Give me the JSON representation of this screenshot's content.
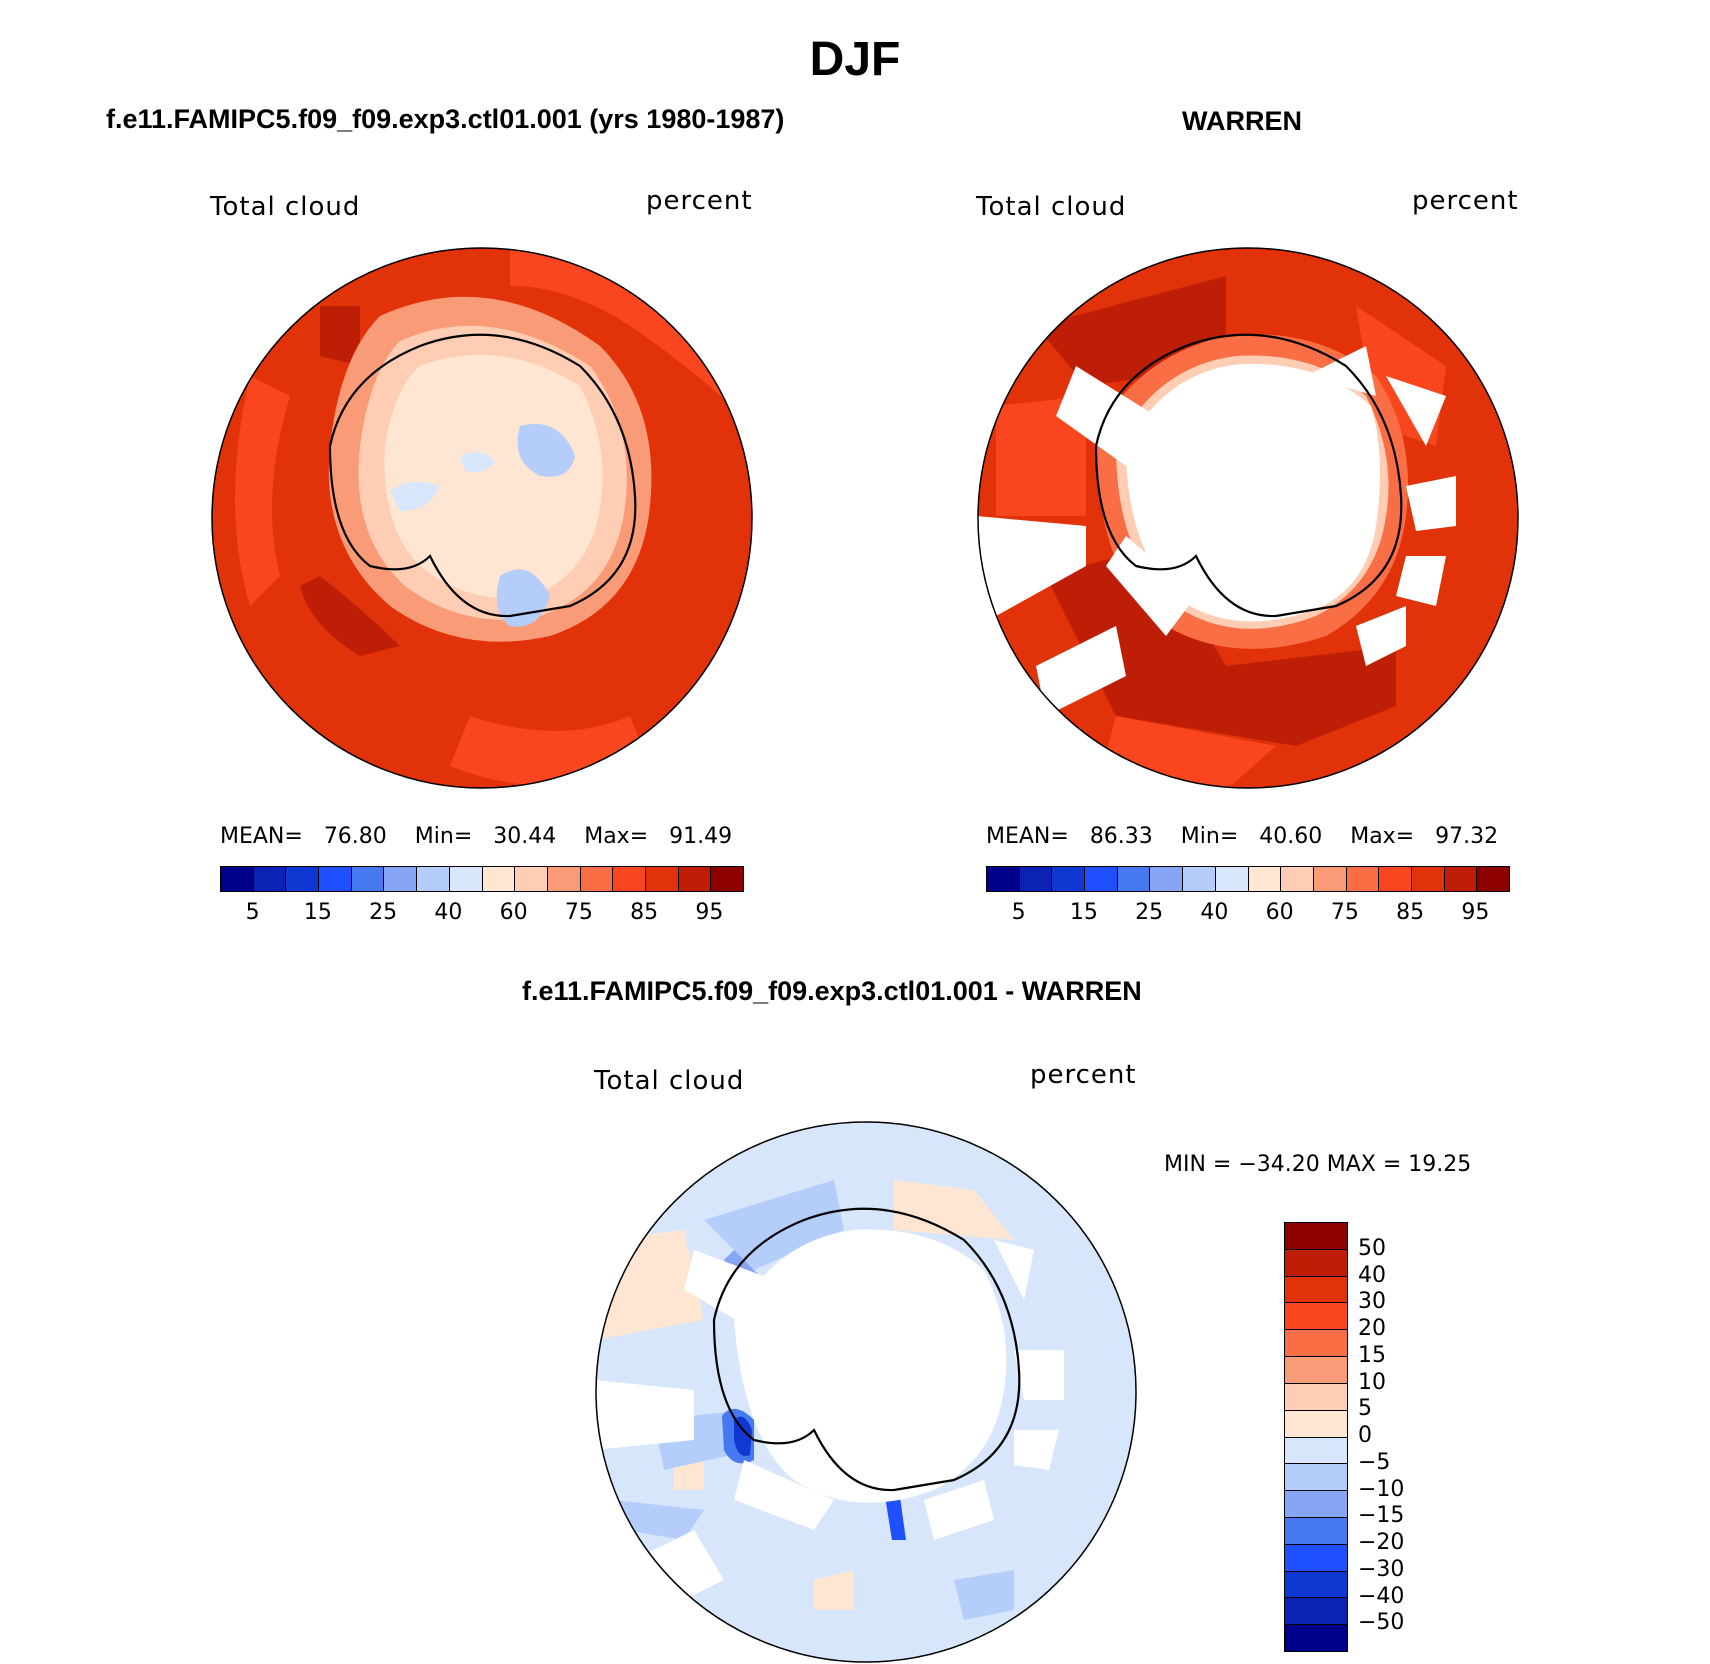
{
  "figure": {
    "title": "DJF"
  },
  "panels": [
    {
      "case_title": "f.e11.FAMIPC5.f09_f09.exp3.ctl01.001 (yrs 1980-1987)",
      "left_label": "Total cloud",
      "right_label": "percent",
      "stats": {
        "mean_label": "MEAN=",
        "mean": "76.80",
        "min_label": "Min=",
        "min": "30.44",
        "max_label": "Max=",
        "max": "91.49"
      }
    },
    {
      "case_title": "WARREN",
      "left_label": "Total cloud",
      "right_label": "percent",
      "stats": {
        "mean_label": "MEAN=",
        "mean": "86.33",
        "min_label": "Min=",
        "min": "40.60",
        "max_label": "Max=",
        "max": "97.32"
      }
    },
    {
      "case_title": "f.e11.FAMIPC5.f09_f09.exp3.ctl01.001 - WARREN",
      "left_label": "Total cloud",
      "right_label": "percent",
      "minmax": "MIN = −34.20 MAX =   19.25"
    }
  ],
  "colorbar_abs": {
    "colors": [
      "#00008b",
      "#0a23b4",
      "#0f37d2",
      "#1e50ff",
      "#4678f0",
      "#87a5f5",
      "#b4cdfa",
      "#d7e6fa",
      "#ffe6d2",
      "#ffcdb4",
      "#fa9b78",
      "#fa6e46",
      "#fa461e",
      "#e1320a",
      "#be1e05",
      "#8c0000"
    ],
    "labels": [
      "5",
      "15",
      "25",
      "40",
      "60",
      "75",
      "85",
      "95"
    ]
  },
  "colorbar_diff": {
    "colors_top_to_bottom": [
      "#8c0000",
      "#be1e05",
      "#e1320a",
      "#fa461e",
      "#fa6e46",
      "#fa9b78",
      "#ffcdb4",
      "#ffe6d2",
      "#d7e6fa",
      "#b4cdfa",
      "#87a5f5",
      "#4678f0",
      "#1e50ff",
      "#0f37d2",
      "#0a23b4",
      "#00008b"
    ],
    "labels": [
      "50",
      "40",
      "30",
      "20",
      "15",
      "10",
      "5",
      "0",
      "−5",
      "−10",
      "−15",
      "−20",
      "−30",
      "−40",
      "−50"
    ]
  }
}
